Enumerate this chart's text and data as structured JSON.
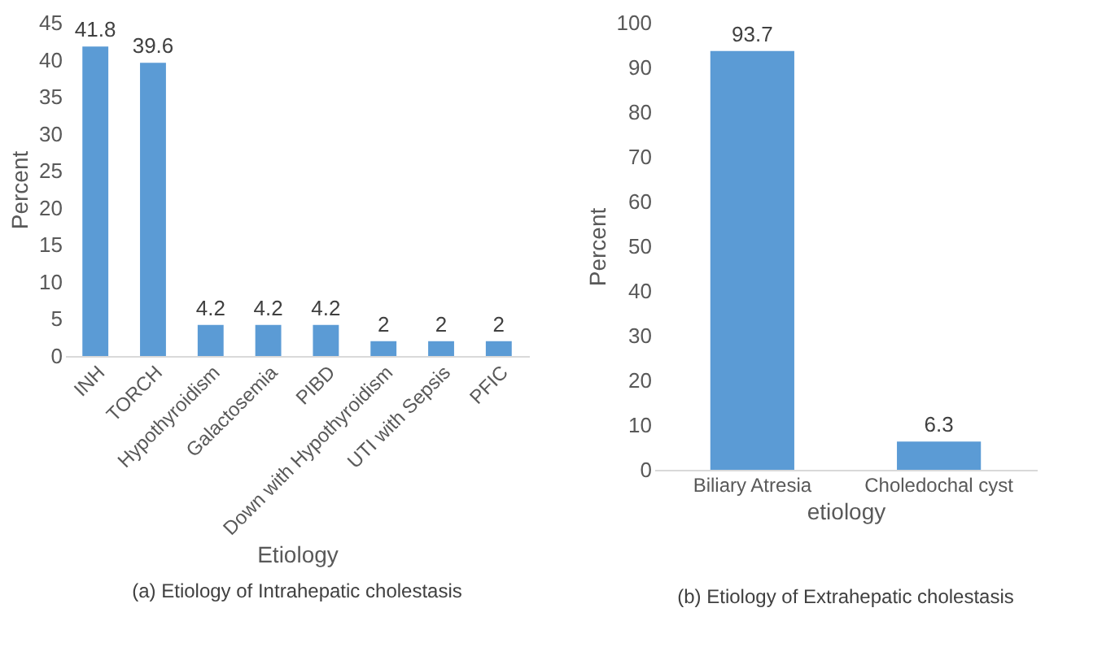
{
  "chart_data": [
    {
      "type": "bar",
      "xlabel": "Etiology",
      "ylabel": "Percent",
      "categories": [
        "INH",
        "TORCH",
        "Hypothyroidism",
        "Galactosemia",
        "PIBD",
        "Down with Hypothyroidism",
        "UTI with Sepsis",
        "PFIC"
      ],
      "values": [
        41.8,
        39.6,
        4.2,
        4.2,
        4.2,
        2,
        2,
        2
      ],
      "color": "#5b9bd5",
      "ylim": [
        0,
        45
      ],
      "yticks": [
        0,
        5,
        10,
        15,
        20,
        25,
        30,
        35,
        40,
        45
      ],
      "data_labels": true,
      "grid": false,
      "annotations": [
        "(a) Etiology of Intrahepatic cholestasis"
      ]
    },
    {
      "type": "bar",
      "xlabel": "etiology",
      "ylabel": "Percent",
      "categories": [
        "Biliary Atresia",
        "Choledochal cyst"
      ],
      "values": [
        93.7,
        6.3
      ],
      "color": "#5b9bd5",
      "ylim": [
        0,
        100
      ],
      "yticks": [
        0,
        10,
        20,
        30,
        40,
        50,
        60,
        70,
        80,
        90,
        100
      ],
      "data_labels": true,
      "grid": false,
      "annotations": [
        "(b) Etiology of Extrahepatic cholestasis"
      ]
    }
  ]
}
